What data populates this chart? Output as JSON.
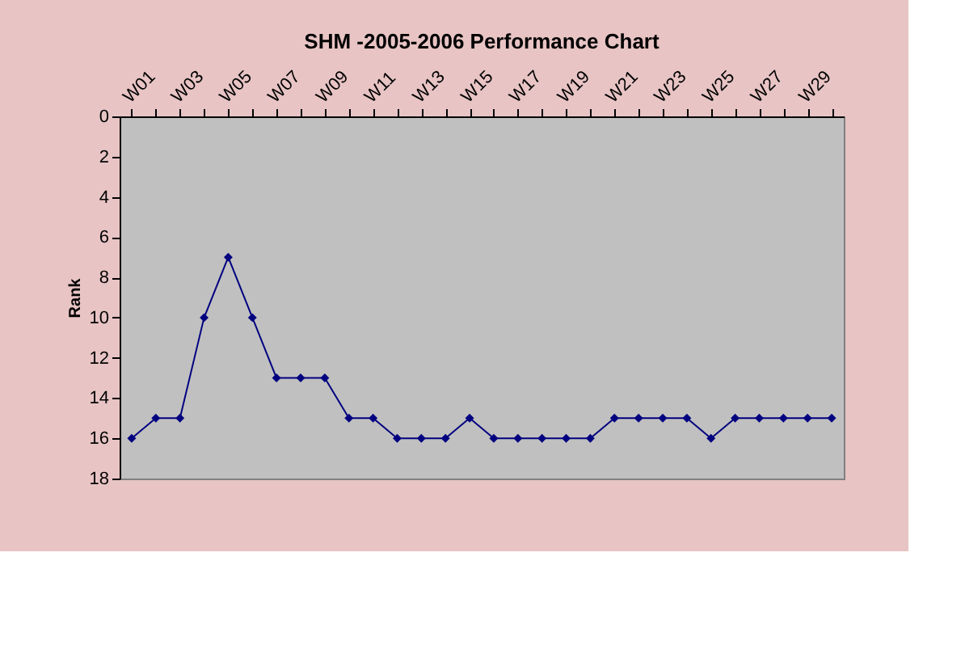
{
  "chart_data": {
    "type": "line",
    "title": "SHM -2005-2006 Performance Chart",
    "ylabel": "Rank",
    "categories": [
      "W01",
      null,
      "W03",
      null,
      "W05",
      null,
      "W07",
      null,
      "W09",
      null,
      "W11",
      null,
      "W13",
      null,
      "W15",
      null,
      "W17",
      null,
      "W19",
      null,
      "W21",
      null,
      "W23",
      null,
      "W25",
      null,
      "W27",
      null,
      "W29",
      null
    ],
    "series": [
      {
        "color": "#000080",
        "values": [
          16,
          15,
          15,
          10,
          7,
          10,
          13,
          13,
          13,
          15,
          15,
          16,
          16,
          16,
          15,
          16,
          16,
          16,
          16,
          16,
          15,
          15,
          15,
          15,
          16,
          15,
          15,
          15,
          15,
          15
        ]
      }
    ],
    "ylim": [
      18,
      0
    ],
    "yticks": [
      0,
      2,
      4,
      6,
      8,
      10,
      12,
      14,
      16,
      18
    ],
    "grid": false,
    "marker": "diamond",
    "line_style": "solid"
  }
}
